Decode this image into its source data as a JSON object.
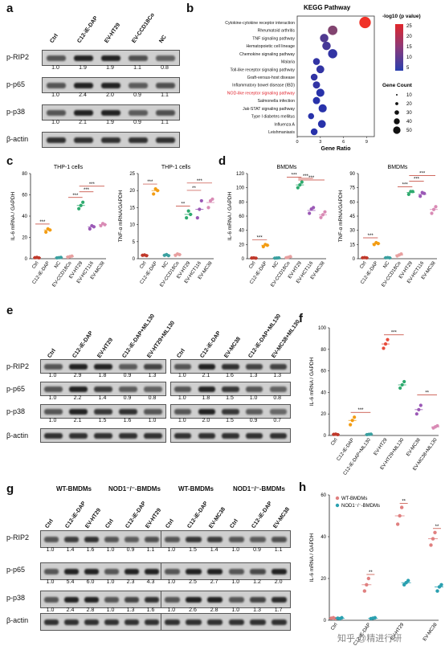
{
  "panel_labels": {
    "a": "a",
    "b": "b",
    "c": "c",
    "d": "d",
    "e": "e",
    "f": "f",
    "g": "g",
    "h": "h"
  },
  "panel_a": {
    "columns": [
      "Ctrl",
      "C12-iE-DAP",
      "EV-HT29",
      "EV-CCD18Co",
      "NC"
    ],
    "rows": [
      {
        "label": "p-RIP2",
        "values": [
          "1.0",
          "1.9",
          "1.9",
          "1.1",
          "0.8"
        ]
      },
      {
        "label": "p-p65",
        "values": [
          "1.0",
          "2.4",
          "2.0",
          "0.9",
          "1.1"
        ]
      },
      {
        "label": "p-p38",
        "values": [
          "1.0",
          "2.1",
          "1.9",
          "0.9",
          "1.1"
        ]
      },
      {
        "label": "β-actin",
        "values": []
      }
    ]
  },
  "kegg": {
    "title": "KEGG Pathway",
    "xlabel": "Gene Ratio",
    "color_legend_title": "-log10 (p value)",
    "color_ticks": [
      "25",
      "20",
      "15",
      "10",
      "5"
    ],
    "size_legend_title": "Gene Count",
    "size_ticks": [
      "10",
      "20",
      "30",
      "40",
      "50"
    ],
    "x_ticks": [
      "0",
      "3",
      "6",
      "9"
    ],
    "highlight_color": "#e0202a",
    "pathways": [
      {
        "name": "Cytokine-cytokine receptor interaction",
        "ratio": 8.8,
        "count": 50,
        "logp": 25
      },
      {
        "name": "Rheumatoid arthritis",
        "ratio": 4.6,
        "count": 30,
        "logp": 14
      },
      {
        "name": "TNF signaling pathway",
        "ratio": 3.5,
        "count": 22,
        "logp": 9
      },
      {
        "name": "Hematopoietic cell lineage",
        "ratio": 3.8,
        "count": 22,
        "logp": 8
      },
      {
        "name": "Chemokine signaling pathway",
        "ratio": 4.6,
        "count": 28,
        "logp": 6
      },
      {
        "name": "Malaria",
        "ratio": 2.5,
        "count": 12,
        "logp": 6
      },
      {
        "name": "Toll-like receptor signaling pathway",
        "ratio": 3.0,
        "count": 18,
        "logp": 6
      },
      {
        "name": "Graft-versus-host disease",
        "ratio": 2.2,
        "count": 12,
        "logp": 6
      },
      {
        "name": "Inflammatory bowel disease (IBD)",
        "ratio": 2.5,
        "count": 14,
        "logp": 6
      },
      {
        "name": "NOD-like receptor signaling pathway",
        "ratio": 3.0,
        "count": 20,
        "logp": 5,
        "highlight": true
      },
      {
        "name": "Salmonella infection",
        "ratio": 2.5,
        "count": 14,
        "logp": 5
      },
      {
        "name": "Jak-STAT signaling pathway",
        "ratio": 3.3,
        "count": 20,
        "logp": 5
      },
      {
        "name": "Type I diabetes mellitus",
        "ratio": 1.8,
        "count": 8,
        "logp": 5
      },
      {
        "name": "Influenza A",
        "ratio": 3.2,
        "count": 18,
        "logp": 5
      },
      {
        "name": "Leishmaniasis",
        "ratio": 2.2,
        "count": 12,
        "logp": 5
      }
    ]
  },
  "chart_data": [
    {
      "type": "scatter",
      "id": "c1",
      "title": "THP-1 cells",
      "ylabel": "IL-6 mRNA / GAPDH",
      "ylim": [
        0,
        80
      ],
      "yticks": [
        "0",
        "20",
        "40",
        "60",
        "80"
      ],
      "categories": [
        "Ctrl",
        "C12-iE-DAP",
        "NC",
        "EV-CCD18Co",
        "EV-HT29",
        "EV-HCT116",
        "EV-MC38"
      ],
      "means": [
        1,
        27,
        1,
        2,
        50,
        30,
        32
      ],
      "points": [
        [
          1,
          1.2,
          0.8
        ],
        [
          25,
          28,
          27
        ],
        [
          0.8,
          1,
          1.2
        ],
        [
          1.5,
          2,
          2.5
        ],
        [
          47,
          50,
          53
        ],
        [
          28,
          31,
          30
        ],
        [
          31,
          33,
          32
        ]
      ],
      "colors": [
        "#c0392b",
        "#f39c12",
        "#3aa0a0",
        "#e8a0a0",
        "#2eaa6e",
        "#9b59b6",
        "#d98bb5"
      ],
      "sig": [
        {
          "from": 0,
          "to": 1,
          "label": "***"
        },
        {
          "from": 3,
          "to": 4,
          "label": "***"
        },
        {
          "from": 4,
          "to": 5,
          "label": "***"
        },
        {
          "from": 4,
          "to": 6,
          "label": "***"
        }
      ]
    },
    {
      "type": "scatter",
      "id": "c2",
      "title": "THP-1 cells",
      "ylabel": "TNF-α mRNA/GAPDH",
      "ylim": [
        0,
        25
      ],
      "yticks": [
        "0",
        "5",
        "10",
        "15",
        "20",
        "25"
      ],
      "categories": [
        "Ctrl",
        "C12-iE-DAP",
        "NC",
        "EV-CCD18Co",
        "EV-HT29",
        "EV-HCT116",
        "EV-MC38"
      ],
      "means": [
        1,
        20,
        1,
        1.2,
        13,
        14.5,
        16.5
      ],
      "points": [
        [
          1,
          1.1,
          0.9
        ],
        [
          19,
          20.5,
          20
        ],
        [
          1,
          1.2,
          0.9
        ],
        [
          1,
          1.4,
          1.2
        ],
        [
          12,
          14,
          13
        ],
        [
          12,
          14.5,
          17
        ],
        [
          15,
          17,
          17.5
        ]
      ],
      "colors": [
        "#c0392b",
        "#f39c12",
        "#3aa0a0",
        "#e8a0a0",
        "#2eaa6e",
        "#9b59b6",
        "#d98bb5"
      ],
      "sig": [
        {
          "from": 0,
          "to": 1,
          "label": "***"
        },
        {
          "from": 3,
          "to": 4,
          "label": "**"
        },
        {
          "from": 4,
          "to": 5,
          "label": "**"
        },
        {
          "from": 4,
          "to": 6,
          "label": "***"
        }
      ]
    },
    {
      "type": "scatter",
      "id": "d1",
      "title": "BMDMs",
      "ylabel": "IL-6 mRNA / GAPDH",
      "ylim": [
        0,
        120
      ],
      "yticks": [
        "0",
        "20",
        "40",
        "60",
        "80",
        "100",
        "120"
      ],
      "categories": [
        "Ctrl",
        "C12-iE-DAP",
        "NC",
        "EV-CCD18Co",
        "EV-HT29",
        "EV-HCT116",
        "EV-MC38"
      ],
      "means": [
        1,
        19,
        1,
        2,
        104,
        68,
        62
      ],
      "points": [
        [
          1,
          1.2,
          0.8
        ],
        [
          17,
          20,
          19
        ],
        [
          0.8,
          1,
          1.2
        ],
        [
          1.5,
          2,
          3
        ],
        [
          100,
          104,
          108
        ],
        [
          64,
          70,
          72
        ],
        [
          58,
          62,
          66
        ]
      ],
      "colors": [
        "#c0392b",
        "#f39c12",
        "#3aa0a0",
        "#e8a0a0",
        "#2eaa6e",
        "#9b59b6",
        "#d98bb5"
      ],
      "sig": [
        {
          "from": 0,
          "to": 1,
          "label": "***"
        },
        {
          "from": 3,
          "to": 4,
          "label": "***"
        },
        {
          "from": 4,
          "to": 5,
          "label": "***"
        },
        {
          "from": 4,
          "to": 6,
          "label": "***"
        }
      ]
    },
    {
      "type": "scatter",
      "id": "d2",
      "title": "BMDMs",
      "ylabel": "TNF-α mRNA/GAPDH",
      "ylim": [
        0,
        90
      ],
      "yticks": [
        "0",
        "15",
        "30",
        "45",
        "60",
        "75",
        "90"
      ],
      "categories": [
        "Ctrl",
        "C12-iE-DAP",
        "NC",
        "EV-CCD18Co",
        "EV-HT29",
        "EV-HCT116",
        "EV-MC38"
      ],
      "means": [
        1,
        16,
        1,
        4,
        70,
        68,
        52
      ],
      "points": [
        [
          1,
          1.2,
          0.9
        ],
        [
          15,
          17,
          16
        ],
        [
          1,
          1.2,
          0.9
        ],
        [
          3,
          4,
          5
        ],
        [
          68,
          71,
          71
        ],
        [
          66,
          70,
          69
        ],
        [
          48,
          52,
          55
        ]
      ],
      "colors": [
        "#c0392b",
        "#f39c12",
        "#3aa0a0",
        "#e8a0a0",
        "#2eaa6e",
        "#9b59b6",
        "#d98bb5"
      ],
      "sig": [
        {
          "from": 0,
          "to": 1,
          "label": "***"
        },
        {
          "from": 3,
          "to": 4,
          "label": "***"
        },
        {
          "from": 4,
          "to": 5,
          "label": "***"
        },
        {
          "from": 4,
          "to": 6,
          "label": "***"
        }
      ]
    },
    {
      "type": "scatter",
      "id": "f",
      "title": "",
      "ylabel": "IL-6 mRNA / GAPDH",
      "ylim": [
        0,
        100
      ],
      "yticks": [
        "0",
        "20",
        "40",
        "60",
        "80",
        "100"
      ],
      "categories": [
        "Ctrl",
        "C12-iE-DAP",
        "C12-iE-DAP+ML130",
        "EV-HT29",
        "EV-HT29+ML130",
        "EV-MC38",
        "EV-MC38+ML130"
      ],
      "means": [
        1,
        14,
        1,
        85,
        47,
        24,
        8
      ],
      "points": [
        [
          1,
          1.2,
          0.8
        ],
        [
          10,
          14,
          17
        ],
        [
          0.8,
          1,
          1.2
        ],
        [
          81,
          85,
          89
        ],
        [
          44,
          47,
          50
        ],
        [
          20,
          24,
          28
        ],
        [
          7,
          8,
          9
        ]
      ],
      "colors": [
        "#c0392b",
        "#f39c12",
        "#3aa0a0",
        "#e74c3c",
        "#2eaa6e",
        "#9b59b6",
        "#d98bb5"
      ],
      "sig": [
        {
          "from": 1,
          "to": 2,
          "label": "***"
        },
        {
          "from": 3,
          "to": 4,
          "label": "***"
        },
        {
          "from": 5,
          "to": 6,
          "label": "**"
        }
      ]
    },
    {
      "type": "scatter",
      "id": "h",
      "title": "",
      "ylabel": "IL-6 mRNA / GAPDH",
      "ylim": [
        0,
        60
      ],
      "yticks": [
        "0",
        "20",
        "40",
        "60"
      ],
      "categories": [
        "Ctrl",
        "C12-iE-DAP",
        "EV-HT29",
        "EV-MC38"
      ],
      "legend": [
        "WT-BMDMs",
        "NOD1⁻/⁻-BMDMs"
      ],
      "series": [
        {
          "name": "WT-BMDMs",
          "color": "#e08080",
          "means": [
            1,
            17,
            50,
            39
          ],
          "points": [
            [
              1,
              1.2,
              0.8
            ],
            [
              14,
              17,
              20
            ],
            [
              46,
              50,
              54
            ],
            [
              36,
              39,
              42
            ]
          ]
        },
        {
          "name": "NOD1⁻/⁻-BMDMs",
          "color": "#2aa0b0",
          "means": [
            1,
            1,
            18,
            16
          ],
          "points": [
            [
              1,
              0.8,
              1.2
            ],
            [
              0.8,
              1,
              1.2
            ],
            [
              17,
              18,
              19
            ],
            [
              14,
              16,
              17
            ]
          ]
        }
      ],
      "sig": [
        {
          "at": 1,
          "label": "**"
        },
        {
          "at": 2,
          "label": "**"
        },
        {
          "at": 3,
          "label": "**"
        }
      ]
    }
  ],
  "panel_e": {
    "left_columns": [
      "Ctrl",
      "C12-iE-DAP",
      "EV-HT29",
      "C12-iE-DAP+ML130",
      "EV-HT29+ML130"
    ],
    "right_columns": [
      "Ctrl",
      "C12-iE-DAP",
      "EV-MC38",
      "C12-iE-DAP+ML130",
      "EV-MC38+ML130"
    ],
    "rows": [
      {
        "label": "p-RIP2",
        "left": [
          "1.0",
          "2.9",
          "1.8",
          "0.9",
          "1.3"
        ],
        "right": [
          "1.0",
          "2.1",
          "1.6",
          "1.3",
          "1.3"
        ]
      },
      {
        "label": "p-p65",
        "left": [
          "1.0",
          "2.2",
          "1.4",
          "0.9",
          "0.8"
        ],
        "right": [
          "1.0",
          "1.8",
          "1.5",
          "1.0",
          "0.8"
        ]
      },
      {
        "label": "p-p38",
        "left": [
          "1.0",
          "2.1",
          "1.5",
          "1.6",
          "1.0"
        ],
        "right": [
          "1.0",
          "2.0",
          "1.5",
          "0.9",
          "0.7"
        ]
      },
      {
        "label": "β-actin",
        "left": [],
        "right": []
      }
    ]
  },
  "panel_g": {
    "groups": [
      "WT-BMDMs",
      "NOD1⁻/⁻-BMDMs",
      "WT-BMDMs",
      "NOD1⁻/⁻-BMDMs"
    ],
    "left_columns": [
      "Ctrl",
      "C12-iE-DAP",
      "EV-HT29",
      "Ctrl",
      "C12-iE-DAP",
      "EV-HT29"
    ],
    "right_columns": [
      "Ctrl",
      "C12-iE-DAP",
      "EV-MC38",
      "Ctrl",
      "C12-iE-DAP",
      "EV-MC38"
    ],
    "rows": [
      {
        "label": "p-RIP2",
        "left": [
          "1.0",
          "1.4",
          "1.6",
          "1.0",
          "0.9",
          "1.1"
        ],
        "right": [
          "1.0",
          "1.5",
          "1.4",
          "1.0",
          "0.9",
          "1.1"
        ]
      },
      {
        "label": "p-p65",
        "left": [
          "1.0",
          "5.4",
          "6.0",
          "1.0",
          "2.3",
          "4.3"
        ],
        "right": [
          "1.0",
          "2.5",
          "2.7",
          "1.0",
          "1.2",
          "2.0"
        ]
      },
      {
        "label": "p-p38",
        "left": [
          "1.0",
          "2.4",
          "2.8",
          "1.0",
          "1.3",
          "1.6"
        ],
        "right": [
          "1.0",
          "2.6",
          "2.8",
          "1.0",
          "1.3",
          "1.7"
        ]
      },
      {
        "label": "β-actin",
        "left": [],
        "right": []
      }
    ]
  },
  "watermark": "知乎 @精进行研"
}
